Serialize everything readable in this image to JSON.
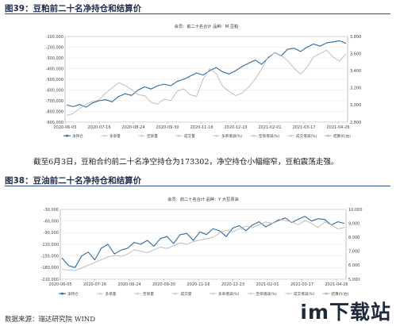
{
  "figure1": {
    "label": "图39：豆粕前二十名净持仓和结算价",
    "chart_data": {
      "type": "line",
      "title": "会员：前二十名合计 品种：M 豆粕",
      "x_ticks": [
        "2020-06-05",
        "2020-07-16",
        "2020-08-24",
        "2020-09-30",
        "2020-11-16",
        "2020-12-23",
        "2021-02-01",
        "2021-03-17",
        "2021-04-26"
      ],
      "y_left": {
        "lim": [
          -900000,
          -100000
        ],
        "ticks": [
          "-100,000",
          "-200,000",
          "-300,000",
          "-400,000",
          "-500,000",
          "-600,000",
          "-700,000",
          "-800,000",
          "-900,000"
        ]
      },
      "y_right": {
        "lim": [
          2800,
          3800
        ],
        "ticks": [
          "3,800",
          "3,600",
          "3,400",
          "3,200",
          "3,000",
          "2,800"
        ]
      },
      "legend": [
        "净持仓",
        "多单量",
        "空单量",
        "成交量",
        "多单增减(%)",
        "空单增减(%)",
        "成交增减(%)",
        "结算价(右)"
      ],
      "series": [
        {
          "name": "净持仓",
          "axis": "left",
          "color": "#2e6b9e",
          "values": [
            -740000,
            -755000,
            -735000,
            -760000,
            -720000,
            -700000,
            -690000,
            -710000,
            -660000,
            -635000,
            -650000,
            -600000,
            -570000,
            -590000,
            -560000,
            -545000,
            -560000,
            -520000,
            -500000,
            -470000,
            -440000,
            -460000,
            -420000,
            -390000,
            -430000,
            -450000,
            -420000,
            -380000,
            -350000,
            -320000,
            -360000,
            -300000,
            -250000,
            -280000,
            -220000,
            -210000,
            -240000,
            -200000,
            -170000,
            -190000,
            -160000,
            -150000,
            -140000,
            -165000
          ]
        },
        {
          "name": "结算价(右)",
          "axis": "right",
          "color": "#b8b8b8",
          "values": [
            2880,
            2900,
            2960,
            3010,
            3040,
            3060,
            3140,
            3200,
            3260,
            3230,
            3180,
            3120,
            3110,
            3030,
            3010,
            3070,
            3050,
            3160,
            3190,
            3120,
            3100,
            3300,
            3420,
            3370,
            3220,
            3160,
            3110,
            3140,
            3210,
            3300,
            3420,
            3560,
            3610,
            3580,
            3520,
            3430,
            3360,
            3440,
            3560,
            3600,
            3640,
            3560,
            3510,
            3600
          ]
        }
      ]
    }
  },
  "caption": "截至6月3日，豆粕合约前二十名净空持仓为173302，净空持仓小幅缩窄，豆粕震荡走强。",
  "figure2": {
    "label": "图38：豆油前二十名净持仓和结算价",
    "chart_data": {
      "type": "line",
      "title": "会员：前二十名合计 品种：Y 大豆原油",
      "x_ticks": [
        "2020-06-05",
        "2020-07-16",
        "2020-08-24",
        "2020-09-30",
        "2020-11-16",
        "2020-12-23",
        "2021-02-01",
        "2021-03-17",
        "2021-04-26"
      ],
      "y_left": {
        "lim": [
          -210000,
          -30000
        ],
        "ticks": [
          "-30,000",
          "-60,000",
          "-90,000",
          "-120,000",
          "-150,000",
          "-180,000",
          "-210,000"
        ]
      },
      "y_right": {
        "lim": [
          5000,
          10000
        ],
        "ticks": [
          "10,000",
          "9,000",
          "8,000",
          "7,000",
          "6,000",
          "5,000"
        ]
      },
      "legend": [
        "净持仓",
        "多单量",
        "空单量",
        "成交量",
        "多单增减(%)",
        "空单增减(%)",
        "成交增减(%)",
        "结算价(右)"
      ],
      "series": [
        {
          "name": "净持仓",
          "axis": "left",
          "color": "#2e6b9e",
          "values": [
            -155000,
            -175000,
            -180000,
            -150000,
            -140000,
            -160000,
            -130000,
            -120000,
            -145000,
            -135000,
            -130000,
            -115000,
            -120000,
            -110000,
            -125000,
            -105000,
            -100000,
            -118000,
            -95000,
            -92000,
            -110000,
            -88000,
            -95000,
            -80000,
            -85000,
            -100000,
            -78000,
            -72000,
            -85000,
            -70000,
            -62000,
            -75000,
            -66000,
            -58000,
            -52000,
            -64000,
            -55000,
            -48000,
            -60000,
            -54000,
            -56000,
            -70000,
            -62000,
            -66000
          ]
        },
        {
          "name": "结算价(右)",
          "axis": "right",
          "color": "#b8b8b8",
          "values": [
            5700,
            5650,
            5620,
            5800,
            6000,
            6200,
            6400,
            6600,
            6700,
            6650,
            6800,
            7100,
            7000,
            6900,
            7100,
            7300,
            7200,
            7400,
            7600,
            7500,
            7700,
            7800,
            7900,
            8000,
            8300,
            8500,
            8400,
            8600,
            8800,
            8700,
            8900,
            9100,
            9000,
            9300,
            9200,
            9100,
            8900,
            9200,
            9000,
            8700,
            9100,
            8900,
            8600,
            8700
          ]
        }
      ]
    }
  },
  "source": "数据来源：瑞达研究院 WIND",
  "watermark": "im下载站"
}
